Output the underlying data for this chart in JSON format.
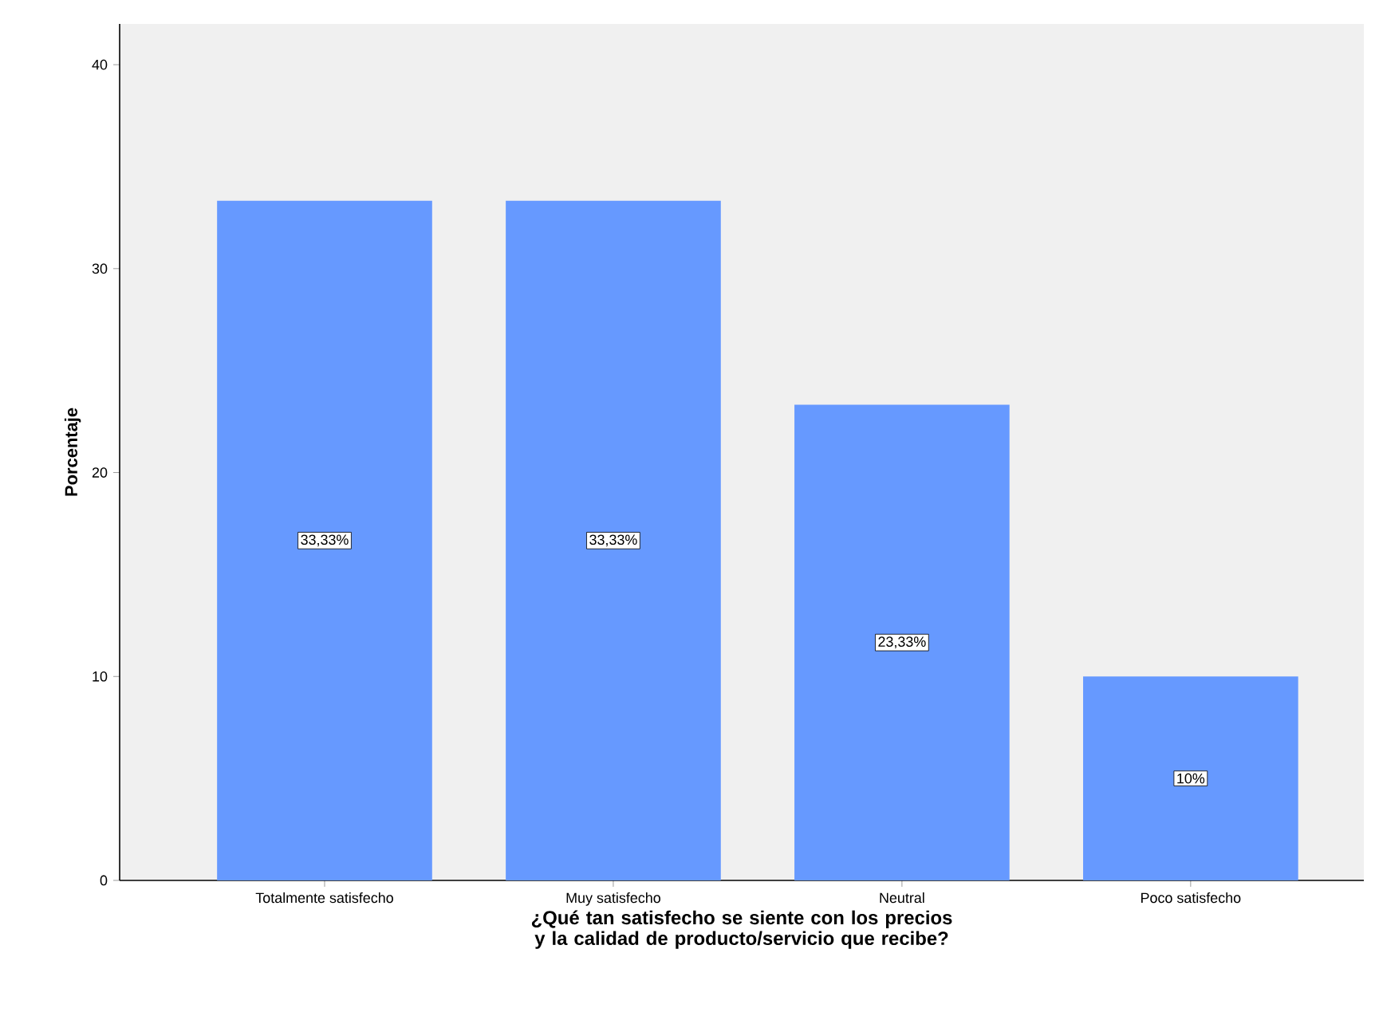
{
  "chart_data": {
    "type": "bar",
    "xlabel": "¿Qué tan satisfecho se siente con los precios y la calidad de producto/servicio que recibe?",
    "ylabel": "Porcentaje",
    "categories": [
      "Totalmente satisfecho",
      "Muy satisfecho",
      "Neutral",
      "Poco satisfecho"
    ],
    "values": [
      33.33,
      33.33,
      23.33,
      10
    ],
    "value_labels": [
      "33,33%",
      "33,33%",
      "23,33%",
      "10%"
    ],
    "color": "#6699ff",
    "ylim": [
      0,
      42
    ],
    "yticks": [
      0,
      10,
      20,
      30,
      40
    ]
  }
}
